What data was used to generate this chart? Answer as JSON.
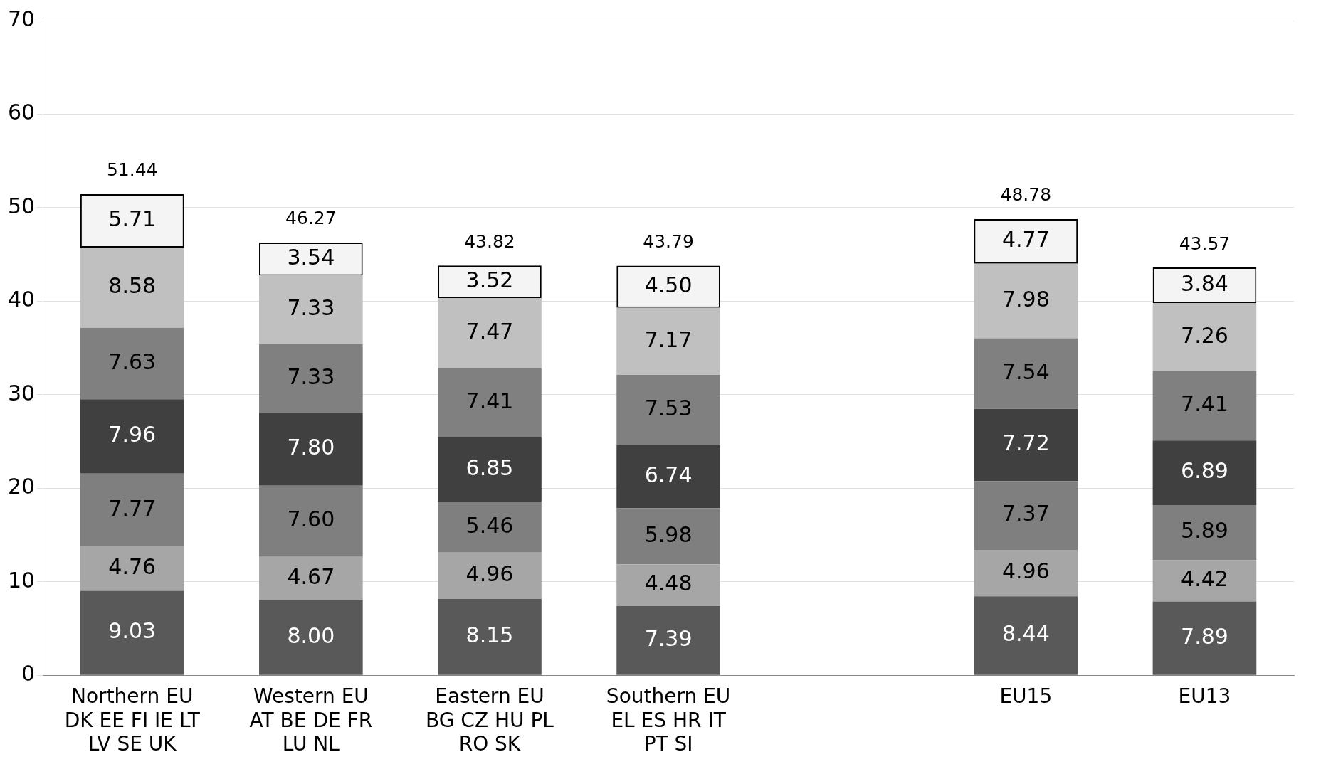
{
  "chart_data": {
    "type": "bar",
    "stacked": true,
    "categories": [
      "Northern EU\nDK EE FI IE LT\nLV SE UK",
      "Western EU\nAT BE DE FR\nLU NL",
      "Eastern EU\nBG CZ HU PL\nRO SK",
      "Southern EU\nEL ES HR IT\nPT SI",
      null,
      "EU15",
      "EU13"
    ],
    "series": [
      {
        "color": "#595959",
        "values": [
          9.03,
          8.0,
          8.15,
          7.39,
          null,
          8.44,
          7.89
        ],
        "value_labels": [
          "9.03",
          "8.00",
          "8.15",
          "7.39",
          null,
          "8.44",
          "7.89"
        ]
      },
      {
        "color": "#a6a6a6",
        "values": [
          4.76,
          4.67,
          4.96,
          4.48,
          null,
          4.96,
          4.42
        ],
        "value_labels": [
          "4.76",
          "4.67",
          "4.96",
          "4.48",
          null,
          "4.96",
          "4.42"
        ]
      },
      {
        "color": "#7f7f7f",
        "values": [
          7.77,
          7.6,
          5.46,
          5.98,
          null,
          7.37,
          5.89
        ],
        "value_labels": [
          "7.77",
          "7.60",
          "5.46",
          "5.98",
          null,
          "7.37",
          "5.89"
        ]
      },
      {
        "color": "#404040",
        "values": [
          7.96,
          7.8,
          6.85,
          6.74,
          null,
          7.72,
          6.89
        ],
        "value_labels": [
          "7.96",
          "7.80",
          "6.85",
          "6.74",
          null,
          "7.72",
          "6.89"
        ]
      },
      {
        "color": "#808080",
        "values": [
          7.63,
          7.33,
          7.41,
          7.53,
          null,
          7.54,
          7.41
        ],
        "value_labels": [
          "7.63",
          "7.33",
          "7.41",
          "7.53",
          null,
          "7.54",
          "7.41"
        ]
      },
      {
        "color": "#c0c0c0",
        "values": [
          8.58,
          7.33,
          7.47,
          7.17,
          null,
          7.98,
          7.26
        ],
        "value_labels": [
          "8.58",
          "7.33",
          "7.47",
          "7.17",
          null,
          "7.98",
          "7.26"
        ]
      },
      {
        "color": "#f4f4f4",
        "values": [
          5.71,
          3.54,
          3.52,
          4.5,
          null,
          4.77,
          3.84
        ],
        "value_labels": [
          "5.71",
          "3.54",
          "3.52",
          "4.50",
          null,
          "4.77",
          "3.84"
        ]
      }
    ],
    "ylim": [
      0,
      70
    ],
    "yticks": [
      0,
      10,
      20,
      30,
      40,
      50,
      60,
      70
    ],
    "grid": "y",
    "legend": false,
    "totals": [
      "51.44",
      "46.27",
      "43.82",
      "43.79",
      null,
      "48.78",
      "43.57"
    ]
  }
}
